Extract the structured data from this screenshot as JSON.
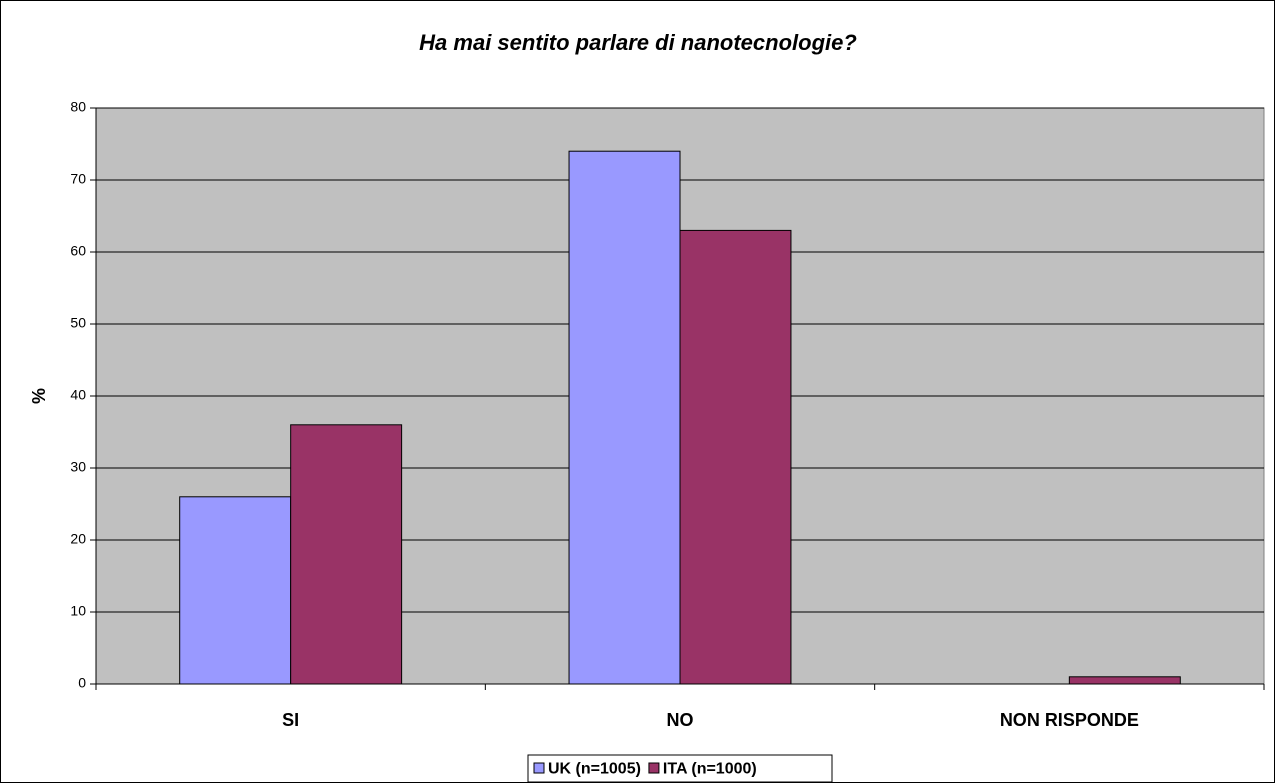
{
  "chart_data": {
    "type": "bar",
    "title": "Ha mai sentito parlare di nanotecnologie?",
    "y_label": "%",
    "categories": [
      "SI",
      "NO",
      "NON RISPONDE"
    ],
    "series": [
      {
        "name": "UK (n=1005)",
        "color": "#9999ff",
        "values": [
          26,
          74,
          0
        ]
      },
      {
        "name": "ITA (n=1000)",
        "color": "#993366",
        "values": [
          36,
          63,
          1
        ]
      }
    ],
    "ylim": [
      0,
      80
    ],
    "yticks": [
      0,
      10,
      20,
      30,
      40,
      50,
      60,
      70,
      80
    ],
    "grid": true,
    "plot_background": "#c0c0c0",
    "legend": "bottom"
  }
}
